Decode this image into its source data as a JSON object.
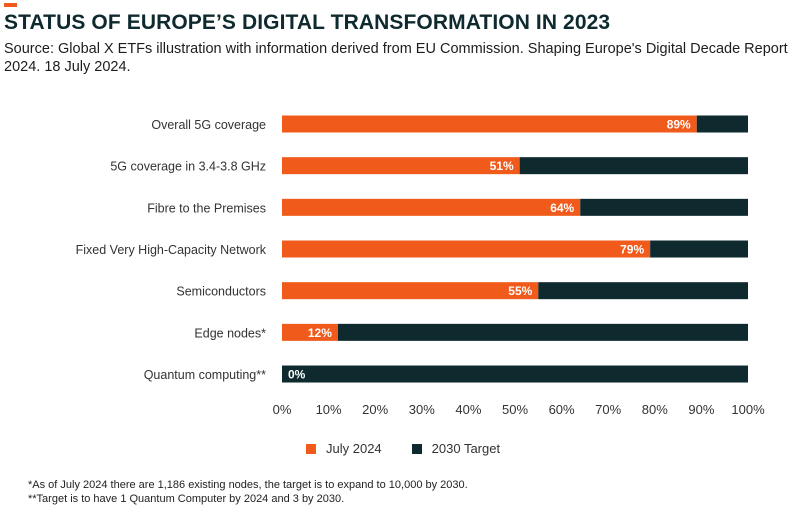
{
  "header": {
    "title": "STATUS OF EUROPE’S DIGITAL TRANSFORMATION IN 2023",
    "subtitle": "Source: Global X ETFs illustration with information derived from EU Commission. Shaping Europe's Digital Decade Report 2024. 18 July 2024."
  },
  "colors": {
    "accent": "#f05a1a",
    "july_2024": "#f05a1a",
    "target_2030": "#0e2a2f"
  },
  "chart_data": {
    "type": "bar",
    "orientation": "horizontal",
    "stacked": true,
    "categories": [
      "Overall 5G coverage",
      "5G coverage in 3.4-3.8 GHz",
      "Fibre to the Premises",
      "Fixed Very High-Capacity Network",
      "Semiconductors",
      "Edge nodes*",
      "Quantum computing**"
    ],
    "series": [
      {
        "name": "July 2024",
        "values": [
          89,
          51,
          64,
          79,
          55,
          12,
          0
        ],
        "color": "#f05a1a"
      },
      {
        "name": "2030 Target",
        "values": [
          11,
          49,
          36,
          21,
          45,
          88,
          100
        ],
        "color": "#0e2a2f"
      }
    ],
    "data_labels": [
      "89%",
      "51%",
      "64%",
      "79%",
      "55%",
      "12%",
      "0%"
    ],
    "xticks": [
      "0%",
      "10%",
      "20%",
      "30%",
      "40%",
      "50%",
      "60%",
      "70%",
      "80%",
      "90%",
      "100%"
    ],
    "xlim": [
      0,
      100
    ],
    "grid": false,
    "legend_position": "bottom"
  },
  "legend": {
    "items": [
      "July 2024",
      "2030 Target"
    ]
  },
  "footnotes": [
    "*As of July 2024 there are 1,186 existing nodes, the target is to expand to 10,000 by 2030.",
    "**Target is to have 1 Quantum Computer by 2024 and 3 by 2030."
  ]
}
